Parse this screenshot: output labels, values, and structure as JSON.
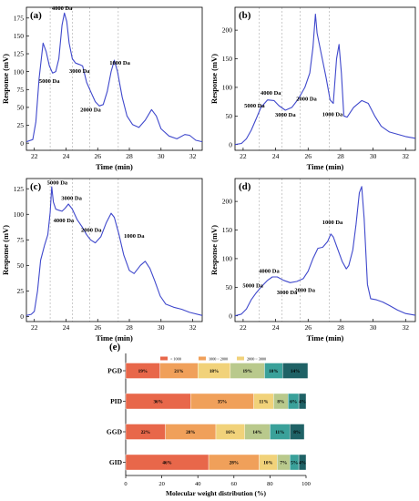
{
  "chart_data": [
    {
      "panel": "(a)",
      "type": "line",
      "xlabel": "Time (min)",
      "ylabel": "Response (mV)",
      "xlim": [
        21.5,
        32.6
      ],
      "ylim": [
        -10,
        190
      ],
      "xticks": [
        22,
        24,
        26,
        28,
        30,
        32
      ],
      "yticks": [
        0,
        25,
        50,
        75,
        100,
        125,
        150,
        175
      ],
      "color": "#3f48cc",
      "refs": [
        23.0,
        24.4,
        25.5,
        27.3
      ],
      "points": [
        [
          21.5,
          2
        ],
        [
          21.9,
          5
        ],
        [
          22.1,
          30
        ],
        [
          22.3,
          90
        ],
        [
          22.55,
          140
        ],
        [
          22.75,
          128
        ],
        [
          22.95,
          108
        ],
        [
          23.15,
          98
        ],
        [
          23.35,
          100
        ],
        [
          23.55,
          118
        ],
        [
          23.75,
          165
        ],
        [
          23.9,
          182
        ],
        [
          24.05,
          170
        ],
        [
          24.2,
          140
        ],
        [
          24.4,
          118
        ],
        [
          24.6,
          112
        ],
        [
          24.85,
          110
        ],
        [
          25.05,
          108
        ],
        [
          25.3,
          85
        ],
        [
          25.6,
          70
        ],
        [
          25.85,
          58
        ],
        [
          26.1,
          52
        ],
        [
          26.35,
          54
        ],
        [
          26.6,
          72
        ],
        [
          26.85,
          100
        ],
        [
          27.05,
          116
        ],
        [
          27.25,
          100
        ],
        [
          27.55,
          64
        ],
        [
          27.85,
          38
        ],
        [
          28.2,
          26
        ],
        [
          28.6,
          22
        ],
        [
          29.0,
          32
        ],
        [
          29.4,
          47
        ],
        [
          29.7,
          38
        ],
        [
          30.0,
          20
        ],
        [
          30.5,
          10
        ],
        [
          31.0,
          6
        ],
        [
          31.5,
          12
        ],
        [
          31.8,
          11
        ],
        [
          32.2,
          4
        ],
        [
          32.6,
          2
        ]
      ],
      "annotations": [
        {
          "text": "5000 Da",
          "x": 22.95,
          "y": 84
        },
        {
          "text": "4000 Da",
          "x": 23.75,
          "y": 186
        },
        {
          "text": "3000 Da",
          "x": 24.85,
          "y": 98
        },
        {
          "text": "2000 Da",
          "x": 25.55,
          "y": 44
        },
        {
          "text": "1000 Da",
          "x": 27.4,
          "y": 110
        }
      ]
    },
    {
      "panel": "(b)",
      "type": "line",
      "xlabel": "Time (min)",
      "ylabel": "Response (mV)",
      "xlim": [
        21.5,
        32.6
      ],
      "ylim": [
        -10,
        240
      ],
      "xticks": [
        22,
        24,
        26,
        28,
        30,
        32
      ],
      "yticks": [
        0,
        50,
        100,
        150,
        200
      ],
      "color": "#3f48cc",
      "refs": [
        23.0,
        24.4,
        25.5,
        27.3
      ],
      "points": [
        [
          21.5,
          0
        ],
        [
          21.9,
          2
        ],
        [
          22.2,
          10
        ],
        [
          22.5,
          25
        ],
        [
          22.8,
          45
        ],
        [
          23.1,
          65
        ],
        [
          23.5,
          78
        ],
        [
          23.9,
          77
        ],
        [
          24.2,
          68
        ],
        [
          24.6,
          60
        ],
        [
          25.0,
          65
        ],
        [
          25.4,
          80
        ],
        [
          25.8,
          100
        ],
        [
          26.1,
          125
        ],
        [
          26.3,
          170
        ],
        [
          26.45,
          228
        ],
        [
          26.55,
          195
        ],
        [
          26.8,
          160
        ],
        [
          27.1,
          118
        ],
        [
          27.35,
          78
        ],
        [
          27.55,
          72
        ],
        [
          27.75,
          150
        ],
        [
          27.9,
          175
        ],
        [
          28.05,
          125
        ],
        [
          28.2,
          50
        ],
        [
          28.4,
          48
        ],
        [
          28.8,
          65
        ],
        [
          29.3,
          77
        ],
        [
          29.7,
          72
        ],
        [
          30.1,
          50
        ],
        [
          30.5,
          32
        ],
        [
          31.0,
          22
        ],
        [
          31.5,
          18
        ],
        [
          32.0,
          14
        ],
        [
          32.6,
          11
        ]
      ],
      "annotations": [
        {
          "text": "5000 Da",
          "x": 22.7,
          "y": 65
        },
        {
          "text": "4000 Da",
          "x": 23.7,
          "y": 87
        },
        {
          "text": "3000 Da",
          "x": 24.6,
          "y": 49
        },
        {
          "text": "2000 Da",
          "x": 25.9,
          "y": 77
        },
        {
          "text": "1000 Da",
          "x": 27.5,
          "y": 50
        }
      ]
    },
    {
      "panel": "(c)",
      "type": "line",
      "xlabel": "Time (min)",
      "ylabel": "Response (mV)",
      "xlim": [
        21.5,
        32.6
      ],
      "ylim": [
        -5,
        135
      ],
      "xticks": [
        22,
        24,
        26,
        28,
        30,
        32
      ],
      "yticks": [
        0,
        25,
        50,
        75,
        100,
        125
      ],
      "color": "#3f48cc",
      "refs": [
        23.0,
        24.4,
        25.5,
        27.3
      ],
      "points": [
        [
          21.5,
          1
        ],
        [
          21.8,
          2
        ],
        [
          22.0,
          5
        ],
        [
          22.2,
          25
        ],
        [
          22.4,
          55
        ],
        [
          22.65,
          70
        ],
        [
          22.85,
          80
        ],
        [
          23.0,
          102
        ],
        [
          23.1,
          127
        ],
        [
          23.2,
          112
        ],
        [
          23.35,
          105
        ],
        [
          23.55,
          104
        ],
        [
          23.75,
          103
        ],
        [
          23.95,
          106
        ],
        [
          24.15,
          110
        ],
        [
          24.4,
          105
        ],
        [
          24.7,
          95
        ],
        [
          25.0,
          88
        ],
        [
          25.3,
          80
        ],
        [
          25.55,
          75
        ],
        [
          25.85,
          72
        ],
        [
          26.2,
          78
        ],
        [
          26.55,
          92
        ],
        [
          26.85,
          101
        ],
        [
          27.05,
          97
        ],
        [
          27.35,
          80
        ],
        [
          27.65,
          60
        ],
        [
          28.0,
          45
        ],
        [
          28.3,
          42
        ],
        [
          28.7,
          50
        ],
        [
          29.0,
          54
        ],
        [
          29.3,
          47
        ],
        [
          29.6,
          35
        ],
        [
          29.95,
          20
        ],
        [
          30.3,
          12
        ],
        [
          30.8,
          9
        ],
        [
          31.3,
          7
        ],
        [
          31.8,
          4
        ],
        [
          32.6,
          1
        ]
      ],
      "annotations": [
        {
          "text": "5000 Da",
          "x": 23.45,
          "y": 129
        },
        {
          "text": "4000 Da",
          "x": 23.85,
          "y": 92
        },
        {
          "text": "3000 Da",
          "x": 24.35,
          "y": 114
        },
        {
          "text": "2000 Da",
          "x": 25.6,
          "y": 83
        },
        {
          "text": "1000 Da",
          "x": 28.3,
          "y": 77
        }
      ]
    },
    {
      "panel": "(d)",
      "type": "line",
      "xlabel": "Time (min)",
      "ylabel": "Response (mV)",
      "xlim": [
        21.5,
        32.6
      ],
      "ylim": [
        -10,
        240
      ],
      "xticks": [
        22,
        24,
        26,
        28,
        30,
        32
      ],
      "yticks": [
        0,
        50,
        100,
        150,
        200
      ],
      "color": "#3f48cc",
      "refs": [
        23.0,
        24.4,
        25.5,
        27.3
      ],
      "points": [
        [
          21.5,
          0
        ],
        [
          21.9,
          3
        ],
        [
          22.2,
          12
        ],
        [
          22.5,
          28
        ],
        [
          22.8,
          40
        ],
        [
          23.1,
          50
        ],
        [
          23.5,
          62
        ],
        [
          23.8,
          68
        ],
        [
          24.1,
          68
        ],
        [
          24.5,
          62
        ],
        [
          24.9,
          58
        ],
        [
          25.3,
          60
        ],
        [
          25.7,
          65
        ],
        [
          26.0,
          78
        ],
        [
          26.3,
          100
        ],
        [
          26.6,
          118
        ],
        [
          26.9,
          120
        ],
        [
          27.2,
          130
        ],
        [
          27.4,
          143
        ],
        [
          27.55,
          138
        ],
        [
          27.8,
          118
        ],
        [
          28.1,
          95
        ],
        [
          28.35,
          82
        ],
        [
          28.5,
          88
        ],
        [
          28.75,
          115
        ],
        [
          28.95,
          160
        ],
        [
          29.15,
          215
        ],
        [
          29.3,
          226
        ],
        [
          29.45,
          170
        ],
        [
          29.65,
          55
        ],
        [
          29.85,
          30
        ],
        [
          30.2,
          28
        ],
        [
          30.6,
          24
        ],
        [
          31.0,
          18
        ],
        [
          31.5,
          10
        ],
        [
          32.0,
          4
        ],
        [
          32.6,
          1
        ]
      ],
      "annotations": [
        {
          "text": "5000 Da",
          "x": 22.6,
          "y": 50
        },
        {
          "text": "4000 Da",
          "x": 23.6,
          "y": 75
        },
        {
          "text": "3000 Da",
          "x": 24.7,
          "y": 38
        },
        {
          "text": "2000 Da",
          "x": 25.8,
          "y": 42
        },
        {
          "text": "1000 Da",
          "x": 27.5,
          "y": 160
        }
      ]
    },
    {
      "panel": "(e)",
      "type": "bar",
      "orientation": "horizontal",
      "stacked": true,
      "xlabel": "Molecular weight distribution (%)",
      "xlim": [
        0,
        100
      ],
      "xticks": [
        0,
        20,
        40,
        60,
        80,
        100
      ],
      "categories": [
        "PGD",
        "PID",
        "GGD",
        "GID"
      ],
      "series": [
        {
          "name": "< 1000",
          "color": "#e8674a",
          "values": [
            19,
            36,
            22,
            46
          ]
        },
        {
          "name": "1000 ~ 2000",
          "color": "#f0a05a",
          "values": [
            21,
            35,
            28,
            28
          ]
        },
        {
          "name": "2000 ~ 3000",
          "color": "#f1d27a",
          "values": [
            18,
            11,
            16,
            10
          ]
        },
        {
          "name": "3000 ~ 4000",
          "color": "#b9c98c",
          "values": [
            19,
            8,
            14,
            7
          ]
        },
        {
          "name": "4000 ~ 5000",
          "color": "#3aa19a",
          "values": [
            10,
            6,
            11,
            5
          ]
        },
        {
          "name": "> 5000",
          "color": "#1f6266",
          "values": [
            14,
            4,
            8,
            4
          ]
        }
      ],
      "data_labels": [
        [
          "19%",
          "21%",
          "18%",
          "19%",
          "10%",
          "14%"
        ],
        [
          "36%",
          "35%",
          "11%",
          "8%",
          "6%",
          "4%"
        ],
        [
          "22%",
          "28%",
          "16%",
          "14%",
          "11%",
          "8%"
        ],
        [
          "46%",
          "28%",
          "10%",
          "7%",
          "5%",
          "4%"
        ]
      ]
    }
  ]
}
